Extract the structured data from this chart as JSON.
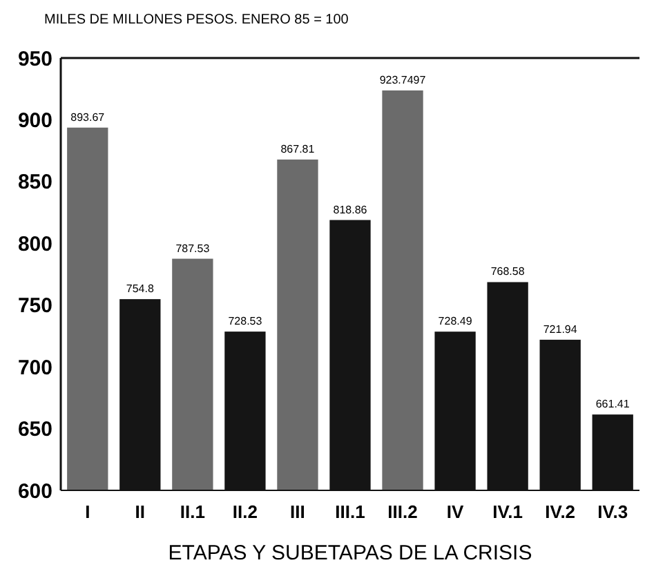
{
  "chart_data": {
    "type": "bar",
    "title": "MILES DE MILLONES PESOS. ENERO 85 = 100",
    "xlabel": "ETAPAS Y SUBETAPAS DE LA CRISIS",
    "categories": [
      "I",
      "II",
      "II.1",
      "II.2",
      "III",
      "III.1",
      "III.2",
      "IV",
      "IV.1",
      "IV.2",
      "IV.3"
    ],
    "values": [
      893.67,
      754.8,
      787.53,
      728.53,
      867.81,
      818.86,
      923.7497,
      728.49,
      768.58,
      721.94,
      661.41
    ],
    "colors": [
      "#6b6b6b",
      "#151515",
      "#6b6b6b",
      "#151515",
      "#6b6b6b",
      "#151515",
      "#6b6b6b",
      "#151515",
      "#151515",
      "#151515",
      "#151515"
    ],
    "ylim": [
      600,
      950
    ],
    "yticks": [
      600,
      650,
      700,
      750,
      800,
      850,
      900,
      950
    ],
    "data_labels": true,
    "grid": false
  }
}
